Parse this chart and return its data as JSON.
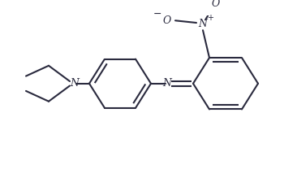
{
  "bg_color": "#ffffff",
  "line_color": "#2a2a3e",
  "lw": 1.5,
  "figsize": [
    3.66,
    2.19
  ],
  "dpi": 100,
  "xlim": [
    0,
    366
  ],
  "ylim": [
    0,
    219
  ]
}
